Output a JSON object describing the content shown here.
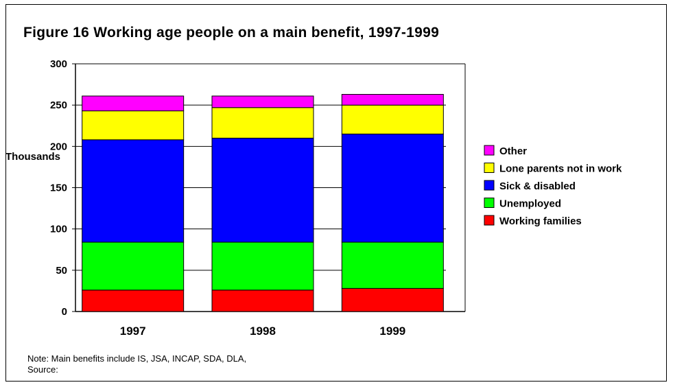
{
  "chart_data": {
    "type": "bar",
    "stacked": true,
    "title": "Figure 16 Working age people on a main benefit, 1997-1999",
    "ylabel": "Thousands",
    "xlabel": "",
    "ylim": [
      0,
      300
    ],
    "yticks": [
      0,
      50,
      100,
      150,
      200,
      250,
      300
    ],
    "grid": true,
    "legend_position": "right",
    "categories": [
      "1997",
      "1998",
      "1999"
    ],
    "series": [
      {
        "name": "Working families",
        "color": "#ff0000",
        "values": [
          26,
          26,
          28
        ]
      },
      {
        "name": "Unemployed",
        "color": "#00ff00",
        "values": [
          58,
          58,
          56
        ]
      },
      {
        "name": "Sick & disabled",
        "color": "#0000ff",
        "values": [
          124,
          126,
          131
        ]
      },
      {
        "name": "Lone parents not in work",
        "color": "#ffff00",
        "values": [
          35,
          37,
          35
        ]
      },
      {
        "name": "Other",
        "color": "#ff00ff",
        "values": [
          18,
          14,
          13
        ]
      }
    ]
  },
  "note": {
    "line1": "Note: Main benefits include IS, JSA, INCAP, SDA, DLA,",
    "line2": "Source:"
  }
}
